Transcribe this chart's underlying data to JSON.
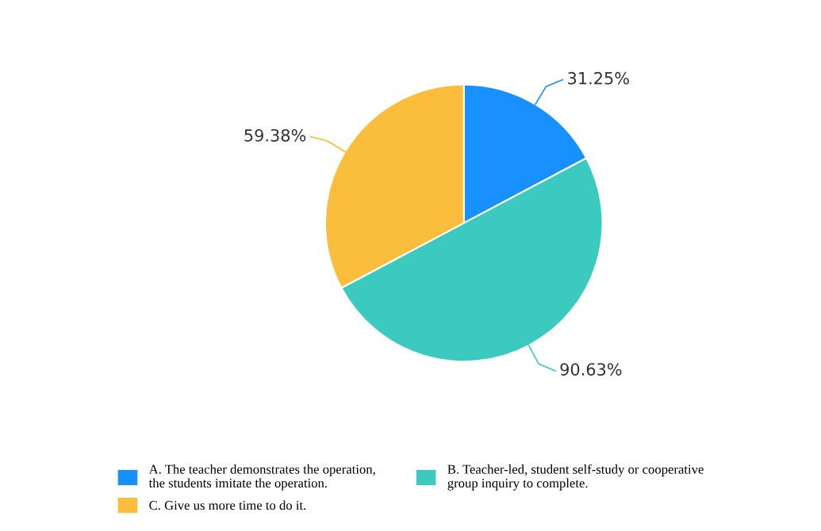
{
  "chart_data": {
    "type": "pie",
    "categories": [
      "A. The teacher demonstrates the operation,\nthe students imitate the operation.",
      "B. Teacher-led, student self-study or cooperative\ngroup inquiry to complete.",
      "C. Give us more time to do it."
    ],
    "values": [
      31.25,
      90.63,
      59.38
    ],
    "value_labels": [
      "31.25%",
      "90.63%",
      "59.38%"
    ],
    "colors": [
      "#1890ff",
      "#3cc9c0",
      "#fbbd3c"
    ],
    "legend": "bottom"
  }
}
